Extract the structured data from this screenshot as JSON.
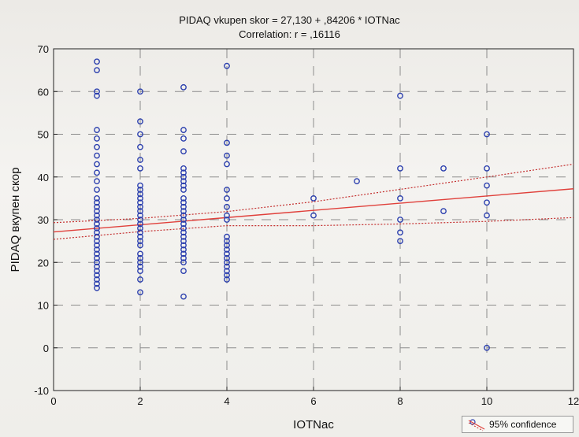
{
  "chart_data": {
    "type": "scatter",
    "title": "PIDAQ vkupen skor = 27,130 + ,84206 * IOTNac",
    "subtitle": "Correlation: r = ,16116",
    "xlabel": "IOTNac",
    "ylabel": "PIDAQ вкупен скор",
    "xlim": [
      0,
      12
    ],
    "ylim": [
      -10,
      70
    ],
    "x_ticks": [
      "0",
      "2",
      "4",
      "6",
      "8",
      "10",
      "12"
    ],
    "y_ticks": [
      "-10",
      "0",
      "10",
      "20",
      "30",
      "40",
      "50",
      "60",
      "70"
    ],
    "grid": true,
    "legend": {
      "position": "bottom-right",
      "label": "95% confidence"
    },
    "regression": {
      "intercept": 27.13,
      "slope": 0.84206
    },
    "confidence_band": {
      "x": [
        0,
        2,
        4,
        6,
        8,
        10,
        12
      ],
      "upper": [
        29.3,
        30.3,
        31.9,
        34.2,
        37.1,
        40.0,
        43.0
      ],
      "lower": [
        25.4,
        27.2,
        28.6,
        28.6,
        29.0,
        29.6,
        30.5
      ]
    },
    "series": [
      {
        "points": [
          [
            1,
            67
          ],
          [
            1,
            65
          ],
          [
            1,
            60
          ],
          [
            1,
            59
          ],
          [
            1,
            51
          ],
          [
            1,
            49
          ],
          [
            1,
            47
          ],
          [
            1,
            45
          ],
          [
            1,
            43
          ],
          [
            1,
            41
          ],
          [
            1,
            39
          ],
          [
            1,
            37
          ],
          [
            1,
            35
          ],
          [
            1,
            34
          ],
          [
            1,
            33
          ],
          [
            1,
            32
          ],
          [
            1,
            31
          ],
          [
            1,
            30
          ],
          [
            1,
            29
          ],
          [
            1,
            28
          ],
          [
            1,
            27
          ],
          [
            1,
            26
          ],
          [
            1,
            25
          ],
          [
            1,
            24
          ],
          [
            1,
            23
          ],
          [
            1,
            22
          ],
          [
            1,
            21
          ],
          [
            1,
            20
          ],
          [
            1,
            19
          ],
          [
            1,
            18
          ],
          [
            1,
            17
          ],
          [
            1,
            16
          ],
          [
            1,
            15
          ],
          [
            1,
            14
          ],
          [
            2,
            60
          ],
          [
            2,
            53
          ],
          [
            2,
            50
          ],
          [
            2,
            47
          ],
          [
            2,
            44
          ],
          [
            2,
            42
          ],
          [
            2,
            38
          ],
          [
            2,
            37
          ],
          [
            2,
            36
          ],
          [
            2,
            35
          ],
          [
            2,
            34
          ],
          [
            2,
            33
          ],
          [
            2,
            32
          ],
          [
            2,
            31
          ],
          [
            2,
            30
          ],
          [
            2,
            29
          ],
          [
            2,
            28
          ],
          [
            2,
            27
          ],
          [
            2,
            26
          ],
          [
            2,
            25
          ],
          [
            2,
            24
          ],
          [
            2,
            22
          ],
          [
            2,
            21
          ],
          [
            2,
            20
          ],
          [
            2,
            19
          ],
          [
            2,
            18
          ],
          [
            2,
            16
          ],
          [
            2,
            13
          ],
          [
            3,
            61
          ],
          [
            3,
            51
          ],
          [
            3,
            49
          ],
          [
            3,
            46
          ],
          [
            3,
            42
          ],
          [
            3,
            41
          ],
          [
            3,
            40
          ],
          [
            3,
            39
          ],
          [
            3,
            38
          ],
          [
            3,
            37
          ],
          [
            3,
            35
          ],
          [
            3,
            34
          ],
          [
            3,
            33
          ],
          [
            3,
            32
          ],
          [
            3,
            31
          ],
          [
            3,
            30
          ],
          [
            3,
            29
          ],
          [
            3,
            28
          ],
          [
            3,
            27
          ],
          [
            3,
            26
          ],
          [
            3,
            25
          ],
          [
            3,
            24
          ],
          [
            3,
            23
          ],
          [
            3,
            22
          ],
          [
            3,
            21
          ],
          [
            3,
            20
          ],
          [
            3,
            18
          ],
          [
            3,
            12
          ],
          [
            4,
            66
          ],
          [
            4,
            48
          ],
          [
            4,
            45
          ],
          [
            4,
            43
          ],
          [
            4,
            37
          ],
          [
            4,
            35
          ],
          [
            4,
            33
          ],
          [
            4,
            31
          ],
          [
            4,
            30
          ],
          [
            4,
            26
          ],
          [
            4,
            25
          ],
          [
            4,
            24
          ],
          [
            4,
            23
          ],
          [
            4,
            22
          ],
          [
            4,
            21
          ],
          [
            4,
            20
          ],
          [
            4,
            19
          ],
          [
            4,
            18
          ],
          [
            4,
            17
          ],
          [
            4,
            16
          ],
          [
            6,
            35
          ],
          [
            6,
            31
          ],
          [
            7,
            39
          ],
          [
            8,
            59
          ],
          [
            8,
            42
          ],
          [
            8,
            35
          ],
          [
            8,
            30
          ],
          [
            8,
            27
          ],
          [
            8,
            25
          ],
          [
            9,
            42
          ],
          [
            9,
            32
          ],
          [
            10,
            50
          ],
          [
            10,
            42
          ],
          [
            10,
            38
          ],
          [
            10,
            34
          ],
          [
            10,
            31
          ],
          [
            10,
            0
          ]
        ]
      }
    ],
    "colors": {
      "points": "#2b3fae",
      "fit_line": "#e0403b",
      "band": "#c43030",
      "grid": "#8c8c8c"
    }
  }
}
